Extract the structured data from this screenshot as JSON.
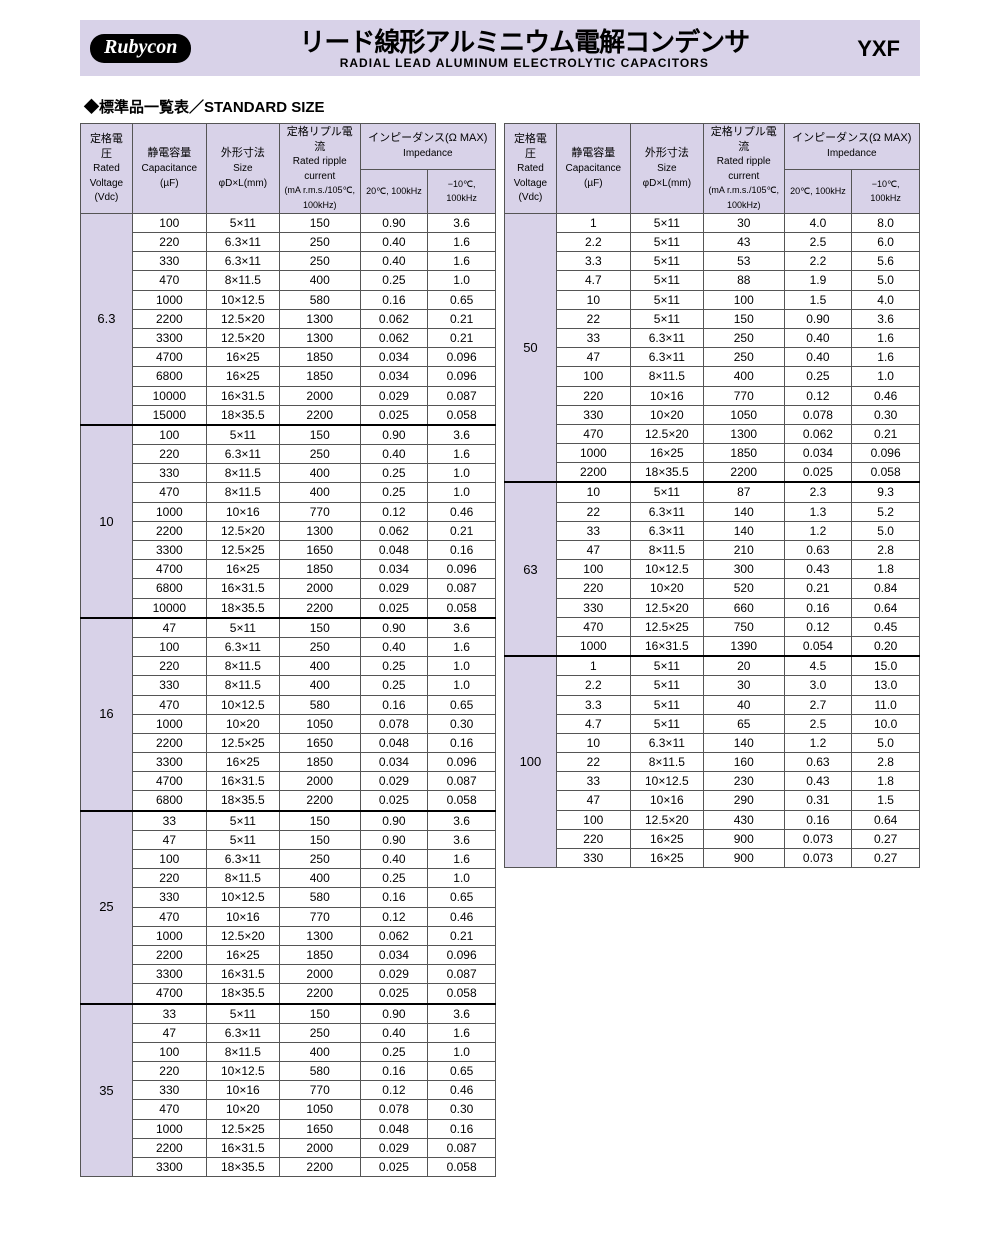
{
  "header": {
    "logo": "Rubycon",
    "title_jp": "リード線形アルミニウム電解コンデンサ",
    "title_en": "RADIAL LEAD ALUMINUM ELECTROLYTIC CAPACITORS",
    "series": "YXF"
  },
  "section_title": "◆標準品一覧表／STANDARD SIZE",
  "columns": {
    "volt_jp": "定格電圧",
    "volt_en1": "Rated",
    "volt_en2": "Voltage",
    "volt_unit": "(Vdc)",
    "cap_jp": "静電容量",
    "cap_en": "Capacitance",
    "cap_unit": "(µF)",
    "size_jp": "外形寸法",
    "size_en": "Size",
    "size_unit": "φD×L(mm)",
    "rip_jp": "定格リプル電流",
    "rip_en": "Rated ripple current",
    "rip_unit": "(mA r.m.s./105℃, 100kHz)",
    "imp_jp": "インピーダンス(Ω MAX)",
    "imp_en": "Impedance",
    "imp_c1": "20℃, 100kHz",
    "imp_c2": "−10℃, 100kHz"
  },
  "left": [
    {
      "v": "6.3",
      "rows": [
        [
          "100",
          "5×11",
          "150",
          "0.90",
          "3.6"
        ],
        [
          "220",
          "6.3×11",
          "250",
          "0.40",
          "1.6"
        ],
        [
          "330",
          "6.3×11",
          "250",
          "0.40",
          "1.6"
        ],
        [
          "470",
          "8×11.5",
          "400",
          "0.25",
          "1.0"
        ],
        [
          "1000",
          "10×12.5",
          "580",
          "0.16",
          "0.65"
        ],
        [
          "2200",
          "12.5×20",
          "1300",
          "0.062",
          "0.21"
        ],
        [
          "3300",
          "12.5×20",
          "1300",
          "0.062",
          "0.21"
        ],
        [
          "4700",
          "16×25",
          "1850",
          "0.034",
          "0.096"
        ],
        [
          "6800",
          "16×25",
          "1850",
          "0.034",
          "0.096"
        ],
        [
          "10000",
          "16×31.5",
          "2000",
          "0.029",
          "0.087"
        ],
        [
          "15000",
          "18×35.5",
          "2200",
          "0.025",
          "0.058"
        ]
      ]
    },
    {
      "v": "10",
      "rows": [
        [
          "100",
          "5×11",
          "150",
          "0.90",
          "3.6"
        ],
        [
          "220",
          "6.3×11",
          "250",
          "0.40",
          "1.6"
        ],
        [
          "330",
          "8×11.5",
          "400",
          "0.25",
          "1.0"
        ],
        [
          "470",
          "8×11.5",
          "400",
          "0.25",
          "1.0"
        ],
        [
          "1000",
          "10×16",
          "770",
          "0.12",
          "0.46"
        ],
        [
          "2200",
          "12.5×20",
          "1300",
          "0.062",
          "0.21"
        ],
        [
          "3300",
          "12.5×25",
          "1650",
          "0.048",
          "0.16"
        ],
        [
          "4700",
          "16×25",
          "1850",
          "0.034",
          "0.096"
        ],
        [
          "6800",
          "16×31.5",
          "2000",
          "0.029",
          "0.087"
        ],
        [
          "10000",
          "18×35.5",
          "2200",
          "0.025",
          "0.058"
        ]
      ]
    },
    {
      "v": "16",
      "rows": [
        [
          "47",
          "5×11",
          "150",
          "0.90",
          "3.6"
        ],
        [
          "100",
          "6.3×11",
          "250",
          "0.40",
          "1.6"
        ],
        [
          "220",
          "8×11.5",
          "400",
          "0.25",
          "1.0"
        ],
        [
          "330",
          "8×11.5",
          "400",
          "0.25",
          "1.0"
        ],
        [
          "470",
          "10×12.5",
          "580",
          "0.16",
          "0.65"
        ],
        [
          "1000",
          "10×20",
          "1050",
          "0.078",
          "0.30"
        ],
        [
          "2200",
          "12.5×25",
          "1650",
          "0.048",
          "0.16"
        ],
        [
          "3300",
          "16×25",
          "1850",
          "0.034",
          "0.096"
        ],
        [
          "4700",
          "16×31.5",
          "2000",
          "0.029",
          "0.087"
        ],
        [
          "6800",
          "18×35.5",
          "2200",
          "0.025",
          "0.058"
        ]
      ]
    },
    {
      "v": "25",
      "rows": [
        [
          "33",
          "5×11",
          "150",
          "0.90",
          "3.6"
        ],
        [
          "47",
          "5×11",
          "150",
          "0.90",
          "3.6"
        ],
        [
          "100",
          "6.3×11",
          "250",
          "0.40",
          "1.6"
        ],
        [
          "220",
          "8×11.5",
          "400",
          "0.25",
          "1.0"
        ],
        [
          "330",
          "10×12.5",
          "580",
          "0.16",
          "0.65"
        ],
        [
          "470",
          "10×16",
          "770",
          "0.12",
          "0.46"
        ],
        [
          "1000",
          "12.5×20",
          "1300",
          "0.062",
          "0.21"
        ],
        [
          "2200",
          "16×25",
          "1850",
          "0.034",
          "0.096"
        ],
        [
          "3300",
          "16×31.5",
          "2000",
          "0.029",
          "0.087"
        ],
        [
          "4700",
          "18×35.5",
          "2200",
          "0.025",
          "0.058"
        ]
      ]
    },
    {
      "v": "35",
      "rows": [
        [
          "33",
          "5×11",
          "150",
          "0.90",
          "3.6"
        ],
        [
          "47",
          "6.3×11",
          "250",
          "0.40",
          "1.6"
        ],
        [
          "100",
          "8×11.5",
          "400",
          "0.25",
          "1.0"
        ],
        [
          "220",
          "10×12.5",
          "580",
          "0.16",
          "0.65"
        ],
        [
          "330",
          "10×16",
          "770",
          "0.12",
          "0.46"
        ],
        [
          "470",
          "10×20",
          "1050",
          "0.078",
          "0.30"
        ],
        [
          "1000",
          "12.5×25",
          "1650",
          "0.048",
          "0.16"
        ],
        [
          "2200",
          "16×31.5",
          "2000",
          "0.029",
          "0.087"
        ],
        [
          "3300",
          "18×35.5",
          "2200",
          "0.025",
          "0.058"
        ]
      ]
    }
  ],
  "right": [
    {
      "v": "50",
      "rows": [
        [
          "1",
          "5×11",
          "30",
          "4.0",
          "8.0"
        ],
        [
          "2.2",
          "5×11",
          "43",
          "2.5",
          "6.0"
        ],
        [
          "3.3",
          "5×11",
          "53",
          "2.2",
          "5.6"
        ],
        [
          "4.7",
          "5×11",
          "88",
          "1.9",
          "5.0"
        ],
        [
          "10",
          "5×11",
          "100",
          "1.5",
          "4.0"
        ],
        [
          "22",
          "5×11",
          "150",
          "0.90",
          "3.6"
        ],
        [
          "33",
          "6.3×11",
          "250",
          "0.40",
          "1.6"
        ],
        [
          "47",
          "6.3×11",
          "250",
          "0.40",
          "1.6"
        ],
        [
          "100",
          "8×11.5",
          "400",
          "0.25",
          "1.0"
        ],
        [
          "220",
          "10×16",
          "770",
          "0.12",
          "0.46"
        ],
        [
          "330",
          "10×20",
          "1050",
          "0.078",
          "0.30"
        ],
        [
          "470",
          "12.5×20",
          "1300",
          "0.062",
          "0.21"
        ],
        [
          "1000",
          "16×25",
          "1850",
          "0.034",
          "0.096"
        ],
        [
          "2200",
          "18×35.5",
          "2200",
          "0.025",
          "0.058"
        ]
      ]
    },
    {
      "v": "63",
      "rows": [
        [
          "10",
          "5×11",
          "87",
          "2.3",
          "9.3"
        ],
        [
          "22",
          "6.3×11",
          "140",
          "1.3",
          "5.2"
        ],
        [
          "33",
          "6.3×11",
          "140",
          "1.2",
          "5.0"
        ],
        [
          "47",
          "8×11.5",
          "210",
          "0.63",
          "2.8"
        ],
        [
          "100",
          "10×12.5",
          "300",
          "0.43",
          "1.8"
        ],
        [
          "220",
          "10×20",
          "520",
          "0.21",
          "0.84"
        ],
        [
          "330",
          "12.5×20",
          "660",
          "0.16",
          "0.64"
        ],
        [
          "470",
          "12.5×25",
          "750",
          "0.12",
          "0.45"
        ],
        [
          "1000",
          "16×31.5",
          "1390",
          "0.054",
          "0.20"
        ]
      ]
    },
    {
      "v": "100",
      "rows": [
        [
          "1",
          "5×11",
          "20",
          "4.5",
          "15.0"
        ],
        [
          "2.2",
          "5×11",
          "30",
          "3.0",
          "13.0"
        ],
        [
          "3.3",
          "5×11",
          "40",
          "2.7",
          "11.0"
        ],
        [
          "4.7",
          "5×11",
          "65",
          "2.5",
          "10.0"
        ],
        [
          "10",
          "6.3×11",
          "140",
          "1.2",
          "5.0"
        ],
        [
          "22",
          "8×11.5",
          "160",
          "0.63",
          "2.8"
        ],
        [
          "33",
          "10×12.5",
          "230",
          "0.43",
          "1.8"
        ],
        [
          "47",
          "10×16",
          "290",
          "0.31",
          "1.5"
        ],
        [
          "100",
          "12.5×20",
          "430",
          "0.16",
          "0.64"
        ],
        [
          "220",
          "16×25",
          "900",
          "0.073",
          "0.27"
        ],
        [
          "330",
          "16×25",
          "900",
          "0.073",
          "0.27"
        ]
      ]
    }
  ]
}
